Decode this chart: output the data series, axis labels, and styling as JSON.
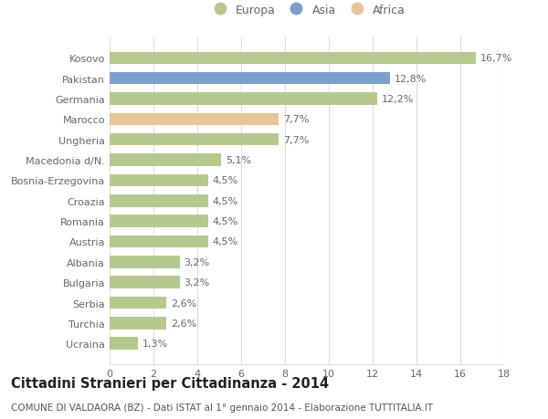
{
  "categories": [
    "Ucraina",
    "Turchia",
    "Serbia",
    "Bulgaria",
    "Albania",
    "Austria",
    "Romania",
    "Croazia",
    "Bosnia-Erzegovina",
    "Macedonia d/N.",
    "Ungheria",
    "Marocco",
    "Germania",
    "Pakistan",
    "Kosovo"
  ],
  "values": [
    1.3,
    2.6,
    2.6,
    3.2,
    3.2,
    4.5,
    4.5,
    4.5,
    4.5,
    5.1,
    7.7,
    7.7,
    12.2,
    12.8,
    16.7
  ],
  "colors": [
    "#b5c98e",
    "#b5c98e",
    "#b5c98e",
    "#b5c98e",
    "#b5c98e",
    "#b5c98e",
    "#b5c98e",
    "#b5c98e",
    "#b5c98e",
    "#b5c98e",
    "#b5c98e",
    "#e8c49a",
    "#b5c98e",
    "#7b9fcc",
    "#b5c98e"
  ],
  "labels": [
    "1,3%",
    "2,6%",
    "2,6%",
    "3,2%",
    "3,2%",
    "4,5%",
    "4,5%",
    "4,5%",
    "4,5%",
    "5,1%",
    "7,7%",
    "7,7%",
    "12,2%",
    "12,8%",
    "16,7%"
  ],
  "legend_entries": [
    {
      "label": "Europa",
      "color": "#b5c98e"
    },
    {
      "label": "Asia",
      "color": "#7b9fcc"
    },
    {
      "label": "Africa",
      "color": "#e8c49a"
    }
  ],
  "xlim": [
    0,
    18
  ],
  "xticks": [
    0,
    2,
    4,
    6,
    8,
    10,
    12,
    14,
    16,
    18
  ],
  "title_bold": "Cittadini Stranieri per Cittadinanza - 2014",
  "subtitle": "COMUNE DI VALDAORA (BZ) - Dati ISTAT al 1° gennaio 2014 - Elaborazione TUTTITALIA.IT",
  "background_color": "#ffffff",
  "grid_color": "#dddddd",
  "bar_height": 0.6,
  "label_fontsize": 8,
  "tick_fontsize": 8,
  "title_fontsize": 10.5,
  "subtitle_fontsize": 7.5,
  "legend_fontsize": 9
}
